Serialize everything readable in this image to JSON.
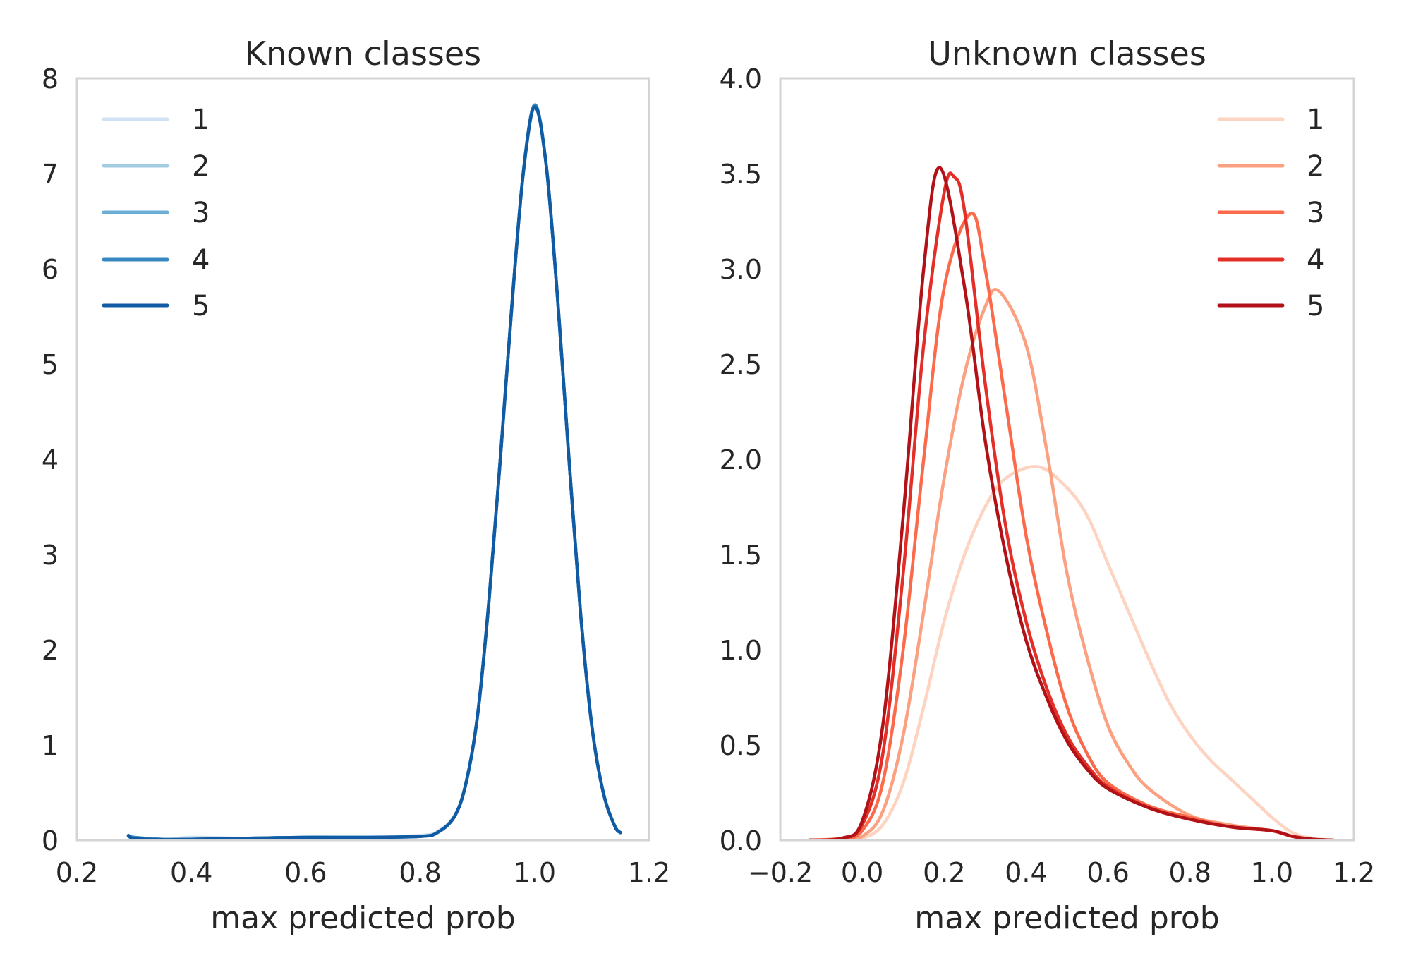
{
  "chart_data": [
    {
      "type": "line",
      "title": "Known classes",
      "xlabel": "max predicted prob",
      "ylabel": "",
      "xlim": [
        0.2,
        1.2
      ],
      "ylim": [
        0,
        8
      ],
      "xticks": [
        "0.2",
        "0.4",
        "0.6",
        "0.8",
        "1.0",
        "1.2"
      ],
      "xtick_values": [
        0.2,
        0.4,
        0.6,
        0.8,
        1.0,
        1.2
      ],
      "yticks": [
        "0",
        "1",
        "2",
        "3",
        "4",
        "5",
        "6",
        "7",
        "8"
      ],
      "ytick_values": [
        0,
        1,
        2,
        3,
        4,
        5,
        6,
        7,
        8
      ],
      "grid": false,
      "legend_position": "top-left",
      "x": [
        0.29,
        0.3,
        0.35,
        0.4,
        0.5,
        0.6,
        0.7,
        0.8,
        0.83,
        0.86,
        0.88,
        0.9,
        0.92,
        0.94,
        0.96,
        0.98,
        1.0,
        1.02,
        1.04,
        1.06,
        1.08,
        1.1,
        1.12,
        1.14,
        1.15
      ],
      "series": [
        {
          "name": "1",
          "color": "#cfe1f2",
          "y": [
            0.0,
            0.0,
            0.0,
            0.03,
            0.02,
            0.03,
            0.03,
            0.05,
            0.09,
            0.26,
            0.6,
            1.3,
            2.5,
            4.0,
            5.6,
            7.0,
            7.72,
            7.1,
            5.7,
            4.0,
            2.4,
            1.2,
            0.5,
            0.15,
            0.08
          ]
        },
        {
          "name": "2",
          "color": "#a3cce3",
          "y": [
            0.04,
            0.03,
            0.01,
            0.01,
            0.02,
            0.03,
            0.03,
            0.04,
            0.08,
            0.25,
            0.6,
            1.3,
            2.5,
            4.0,
            5.6,
            7.0,
            7.72,
            7.1,
            5.7,
            4.0,
            2.4,
            1.2,
            0.5,
            0.15,
            0.08
          ]
        },
        {
          "name": "3",
          "color": "#6aaed6",
          "y": [
            0.04,
            0.03,
            0.01,
            0.01,
            0.02,
            0.03,
            0.03,
            0.04,
            0.08,
            0.25,
            0.6,
            1.3,
            2.5,
            4.0,
            5.6,
            7.0,
            7.72,
            7.1,
            5.7,
            4.0,
            2.4,
            1.2,
            0.5,
            0.15,
            0.08
          ]
        },
        {
          "name": "4",
          "color": "#3787c0",
          "y": [
            0.05,
            0.03,
            0.01,
            0.01,
            0.02,
            0.03,
            0.03,
            0.04,
            0.08,
            0.25,
            0.6,
            1.3,
            2.5,
            4.0,
            5.6,
            7.0,
            7.72,
            7.1,
            5.7,
            4.0,
            2.4,
            1.2,
            0.5,
            0.15,
            0.08
          ]
        },
        {
          "name": "5",
          "color": "#105ba4",
          "y": [
            0.05,
            0.02,
            0.005,
            0.01,
            0.02,
            0.03,
            0.03,
            0.04,
            0.08,
            0.25,
            0.6,
            1.3,
            2.5,
            4.0,
            5.6,
            7.0,
            7.7,
            7.1,
            5.7,
            4.0,
            2.4,
            1.2,
            0.5,
            0.15,
            0.08
          ]
        }
      ]
    },
    {
      "type": "line",
      "title": "Unknown classes",
      "xlabel": "max predicted prob",
      "ylabel": "",
      "xlim": [
        -0.2,
        1.2
      ],
      "ylim": [
        0,
        4
      ],
      "xticks": [
        "−0.2",
        "0.0",
        "0.2",
        "0.4",
        "0.6",
        "0.8",
        "1.0",
        "1.2"
      ],
      "xtick_values": [
        -0.2,
        0.0,
        0.2,
        0.4,
        0.6,
        0.8,
        1.0,
        1.2
      ],
      "yticks": [
        "0.0",
        "0.5",
        "1.0",
        "1.5",
        "2.0",
        "2.5",
        "3.0",
        "3.5",
        "4.0"
      ],
      "ytick_values": [
        0,
        0.5,
        1.0,
        1.5,
        2.0,
        2.5,
        3.0,
        3.5,
        4.0
      ],
      "grid": false,
      "legend_position": "top-right",
      "series": [
        {
          "name": "1",
          "color": "#fdd4c2",
          "x": [
            -0.13,
            -0.05,
            0.0,
            0.05,
            0.1,
            0.15,
            0.2,
            0.25,
            0.3,
            0.35,
            0.43,
            0.5,
            0.55,
            0.6,
            0.65,
            0.7,
            0.75,
            0.8,
            0.85,
            0.9,
            0.95,
            1.0,
            1.05,
            1.1,
            1.15
          ],
          "y": [
            0,
            0.0,
            0.01,
            0.08,
            0.3,
            0.7,
            1.15,
            1.5,
            1.75,
            1.9,
            1.96,
            1.85,
            1.7,
            1.45,
            1.2,
            0.95,
            0.72,
            0.55,
            0.42,
            0.32,
            0.22,
            0.12,
            0.04,
            0.01,
            0
          ]
        },
        {
          "name": "2",
          "color": "#fca082",
          "x": [
            -0.13,
            -0.05,
            0.0,
            0.05,
            0.1,
            0.15,
            0.2,
            0.25,
            0.3,
            0.335,
            0.4,
            0.45,
            0.5,
            0.55,
            0.6,
            0.65,
            0.7,
            0.8,
            0.9,
            1.0,
            1.05,
            1.1,
            1.15
          ],
          "y": [
            0,
            0.005,
            0.02,
            0.15,
            0.55,
            1.2,
            1.9,
            2.45,
            2.8,
            2.88,
            2.6,
            2.05,
            1.4,
            0.95,
            0.6,
            0.4,
            0.27,
            0.13,
            0.08,
            0.05,
            0.02,
            0.005,
            0
          ]
        },
        {
          "name": "3",
          "color": "#fb6b4b",
          "x": [
            -0.13,
            -0.05,
            0.0,
            0.05,
            0.1,
            0.15,
            0.2,
            0.265,
            0.3,
            0.35,
            0.4,
            0.45,
            0.5,
            0.55,
            0.6,
            0.7,
            0.8,
            0.9,
            1.0,
            1.05,
            1.1,
            1.15
          ],
          "y": [
            0,
            0.01,
            0.05,
            0.3,
            1.0,
            2.0,
            2.9,
            3.29,
            3.0,
            2.3,
            1.6,
            1.1,
            0.7,
            0.45,
            0.3,
            0.18,
            0.12,
            0.07,
            0.05,
            0.02,
            0.005,
            0
          ]
        },
        {
          "name": "4",
          "color": "#e32f27",
          "x": [
            -0.13,
            -0.05,
            0.0,
            0.05,
            0.1,
            0.15,
            0.2,
            0.225,
            0.25,
            0.3,
            0.35,
            0.4,
            0.45,
            0.5,
            0.55,
            0.6,
            0.7,
            0.8,
            0.9,
            1.0,
            1.05,
            1.1,
            1.15
          ],
          "y": [
            0,
            0.01,
            0.08,
            0.45,
            1.4,
            2.6,
            3.4,
            3.48,
            3.3,
            2.4,
            1.65,
            1.15,
            0.8,
            0.55,
            0.39,
            0.28,
            0.17,
            0.11,
            0.07,
            0.05,
            0.02,
            0.005,
            0
          ]
        },
        {
          "name": "5",
          "color": "#b11218",
          "x": [
            -0.13,
            -0.05,
            0.0,
            0.05,
            0.1,
            0.15,
            0.19,
            0.25,
            0.3,
            0.35,
            0.4,
            0.45,
            0.5,
            0.55,
            0.6,
            0.7,
            0.8,
            0.9,
            1.0,
            1.05,
            1.1,
            1.15
          ],
          "y": [
            0,
            0.01,
            0.1,
            0.6,
            1.7,
            3.0,
            3.53,
            2.9,
            2.1,
            1.5,
            1.05,
            0.75,
            0.52,
            0.37,
            0.27,
            0.17,
            0.11,
            0.07,
            0.05,
            0.02,
            0.005,
            0
          ]
        }
      ]
    }
  ]
}
